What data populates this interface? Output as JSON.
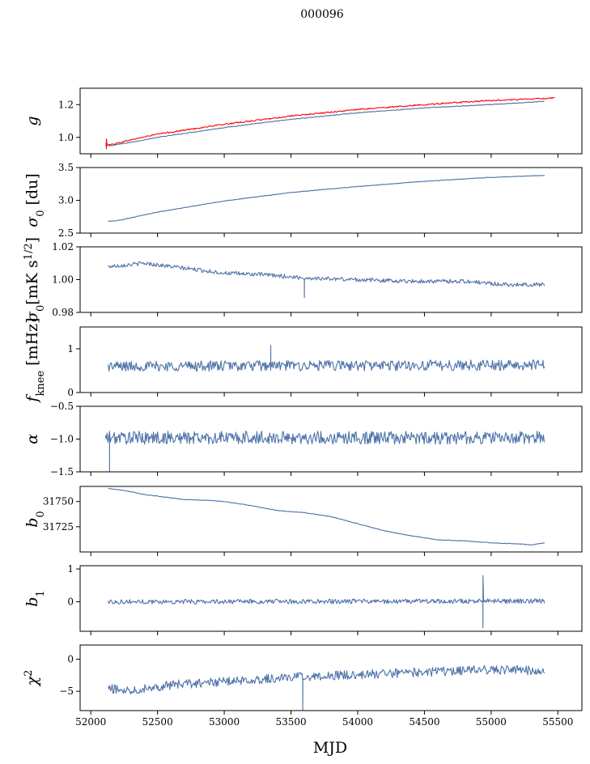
{
  "figure": {
    "suptitle": "000096",
    "xlabel": "MJD",
    "xlim": [
      51920,
      55680
    ],
    "xticks": [
      52000,
      52500,
      53000,
      53500,
      54000,
      54500,
      55000,
      55500
    ],
    "xticklabels": [
      "52000",
      "52500",
      "53000",
      "53500",
      "54000",
      "54500",
      "55000",
      "55500"
    ],
    "colors": {
      "main": "#4c72a8",
      "model": "#ff0000",
      "axes": "#000000"
    }
  },
  "chart_data": [
    {
      "type": "line",
      "ylabel": "g",
      "ylim": [
        0.9,
        1.3
      ],
      "yticks": [
        1.0,
        1.2
      ],
      "yticklabels": [
        "1.0",
        "1.2"
      ],
      "series": [
        {
          "name": "gain",
          "color": "#4c72a8",
          "x": [
            52110,
            52150,
            52300,
            52500,
            53000,
            53500,
            54000,
            54500,
            55000,
            55400
          ],
          "values": [
            0.95,
            0.95,
            0.97,
            1.0,
            1.06,
            1.11,
            1.15,
            1.18,
            1.2,
            1.22
          ],
          "noise": 0.002
        },
        {
          "name": "gain (smoothed)",
          "color": "#ff0000",
          "x": [
            52110,
            52150,
            52300,
            52500,
            53000,
            53500,
            54000,
            54500,
            55000,
            55480
          ],
          "values": [
            0.96,
            0.955,
            0.985,
            1.02,
            1.08,
            1.13,
            1.17,
            1.2,
            1.225,
            1.24
          ],
          "noise": 0.004,
          "width": 2.6,
          "spike": [
            52115,
            0.93,
            0.99
          ]
        }
      ]
    },
    {
      "type": "line",
      "ylabel": "σ0 [du]",
      "ylim": [
        2.5,
        3.5
      ],
      "yticks": [
        2.5,
        3.0,
        3.5
      ],
      "yticklabels": [
        "2.5",
        "3.0",
        "3.5"
      ],
      "series": [
        {
          "name": "sigma0",
          "color": "#4c72a8",
          "x": [
            52130,
            52200,
            52500,
            53000,
            53500,
            54000,
            54500,
            55000,
            55400
          ],
          "values": [
            2.68,
            2.69,
            2.82,
            2.99,
            3.12,
            3.21,
            3.29,
            3.35,
            3.38
          ],
          "noise": 0.004
        }
      ]
    },
    {
      "type": "line",
      "ylabel": "σ0 [mK s^1/2]",
      "ylim": [
        0.98,
        1.02
      ],
      "yticks": [
        0.98,
        1.0,
        1.02
      ],
      "yticklabels": [
        "0.98",
        "1.00",
        "1.02"
      ],
      "series": [
        {
          "name": "sigma0 calibrated",
          "color": "#4c72a8",
          "x": [
            52130,
            52400,
            52700,
            53000,
            53300,
            53600,
            54000,
            54400,
            54800,
            55100,
            55400
          ],
          "values": [
            1.008,
            1.01,
            1.007,
            1.004,
            1.003,
            1.001,
            1.0,
            0.999,
            0.999,
            0.997,
            0.997
          ],
          "noise": 0.0012,
          "spike": [
            53600,
            0.989,
            1.0
          ]
        }
      ]
    },
    {
      "type": "line",
      "ylabel": "f_knee [mHz]",
      "ylim": [
        0,
        1.5
      ],
      "yticks": [
        0,
        1
      ],
      "yticklabels": [
        "0",
        "1"
      ],
      "series": [
        {
          "name": "fknee",
          "color": "#4c72a8",
          "x": [
            52130,
            55400
          ],
          "values": [
            0.6,
            0.63
          ],
          "noise": 0.12,
          "spike": [
            53350,
            1.08,
            0.6
          ]
        }
      ]
    },
    {
      "type": "line",
      "ylabel": "α",
      "ylim": [
        -1.5,
        -0.5
      ],
      "yticks": [
        -1.5,
        -1.0,
        -0.5
      ],
      "yticklabels": [
        "−1.5",
        "−1.0",
        "−0.5"
      ],
      "series": [
        {
          "name": "alpha",
          "color": "#4c72a8",
          "x": [
            52110,
            55400
          ],
          "values": [
            -0.98,
            -0.98
          ],
          "noise": 0.1,
          "spike": [
            52140,
            -1.5,
            -0.9
          ]
        }
      ]
    },
    {
      "type": "line",
      "ylabel": "b0",
      "ylim": [
        31700,
        31765
      ],
      "yticks": [
        31725,
        31750
      ],
      "yticklabels": [
        "31725",
        "31750"
      ],
      "series": [
        {
          "name": "b0",
          "color": "#4c72a8",
          "x": [
            52130,
            52250,
            52400,
            52700,
            52900,
            53000,
            53200,
            53400,
            53600,
            53800,
            54000,
            54200,
            54400,
            54600,
            54800,
            55000,
            55200,
            55300,
            55400
          ],
          "values": [
            31763,
            31761,
            31757,
            31752,
            31751,
            31750,
            31746,
            31741,
            31739,
            31735,
            31728,
            31721,
            31716,
            31712,
            31711,
            31709,
            31708,
            31707,
            31709
          ],
          "noise": 0.25
        }
      ]
    },
    {
      "type": "line",
      "ylabel": "b1",
      "ylim": [
        -0.9,
        1.1
      ],
      "yticks": [
        0,
        1
      ],
      "yticklabels": [
        "0",
        "1"
      ],
      "series": [
        {
          "name": "b1",
          "color": "#4c72a8",
          "x": [
            52130,
            55400
          ],
          "values": [
            0.0,
            0.02
          ],
          "noise": 0.07,
          "spike": [
            54940,
            -0.8,
            0.8
          ]
        }
      ]
    },
    {
      "type": "line",
      "ylabel": "χ²",
      "ylim": [
        -8,
        2.2
      ],
      "yticks": [
        -5,
        0
      ],
      "yticklabels": [
        "−5",
        "0"
      ],
      "series": [
        {
          "name": "chi2",
          "color": "#4c72a8",
          "x": [
            52130,
            52300,
            52600,
            53000,
            53500,
            54000,
            54500,
            55000,
            55400
          ],
          "values": [
            -4.6,
            -4.8,
            -4.0,
            -3.5,
            -2.8,
            -2.4,
            -2.0,
            -1.6,
            -1.8
          ],
          "noise": 0.7,
          "spike": [
            53590,
            -8,
            -3
          ]
        }
      ]
    }
  ]
}
